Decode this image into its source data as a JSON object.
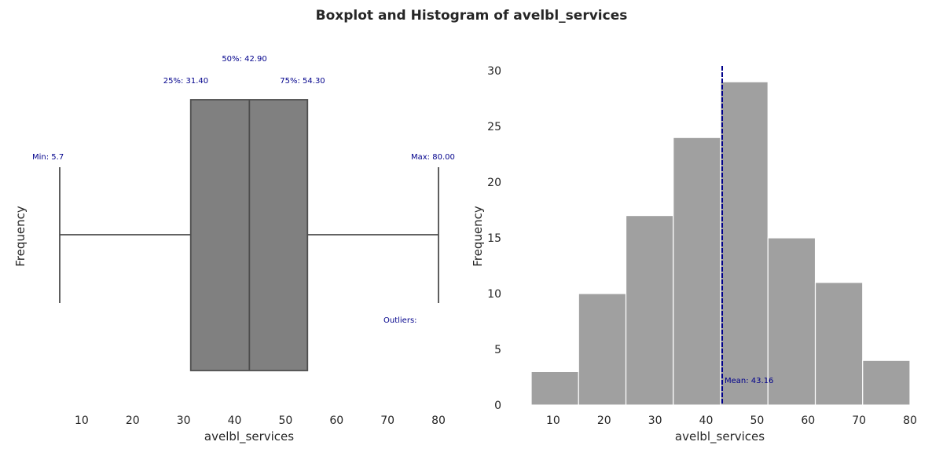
{
  "title": "Boxplot and Histogram of avelbl_services",
  "colors": {
    "box": "#808080",
    "box_edge": "#4d4d4d",
    "hist": "#a0a0a0",
    "mean_line": "#00008b",
    "annotation": "#00008b"
  },
  "chart_data": [
    {
      "type": "box",
      "xlabel": "avelbl_services",
      "ylabel": "Frequency",
      "xlim": [
        5.7,
        80.0
      ],
      "xticks": [
        10,
        20,
        30,
        40,
        50,
        60,
        70,
        80
      ],
      "grid": false,
      "stats": {
        "min": 5.7,
        "q1": 31.4,
        "median": 42.9,
        "q3": 54.3,
        "max": 80.0,
        "outliers": []
      },
      "annotations": {
        "min": "Min: 5.7",
        "q1": "25%: 31.40",
        "median": "50%: 42.90",
        "q3": "75%: 54.30",
        "max": "Max: 80.00",
        "outliers": "Outliers:"
      }
    },
    {
      "type": "histogram",
      "xlabel": "avelbl_services",
      "ylabel": "Frequency",
      "xlim": [
        5.7,
        80.0
      ],
      "ylim": [
        0,
        30
      ],
      "xticks": [
        10,
        20,
        30,
        40,
        50,
        60,
        70,
        80
      ],
      "yticks": [
        0,
        5,
        10,
        15,
        20,
        25,
        30
      ],
      "grid": false,
      "bin_edges": [
        5.7,
        14.99,
        24.28,
        33.56,
        42.85,
        52.14,
        61.43,
        70.71,
        80.0
      ],
      "counts": [
        3,
        10,
        17,
        24,
        29,
        15,
        11,
        4
      ],
      "mean": 43.16,
      "mean_label": "Mean: 43.16"
    }
  ]
}
